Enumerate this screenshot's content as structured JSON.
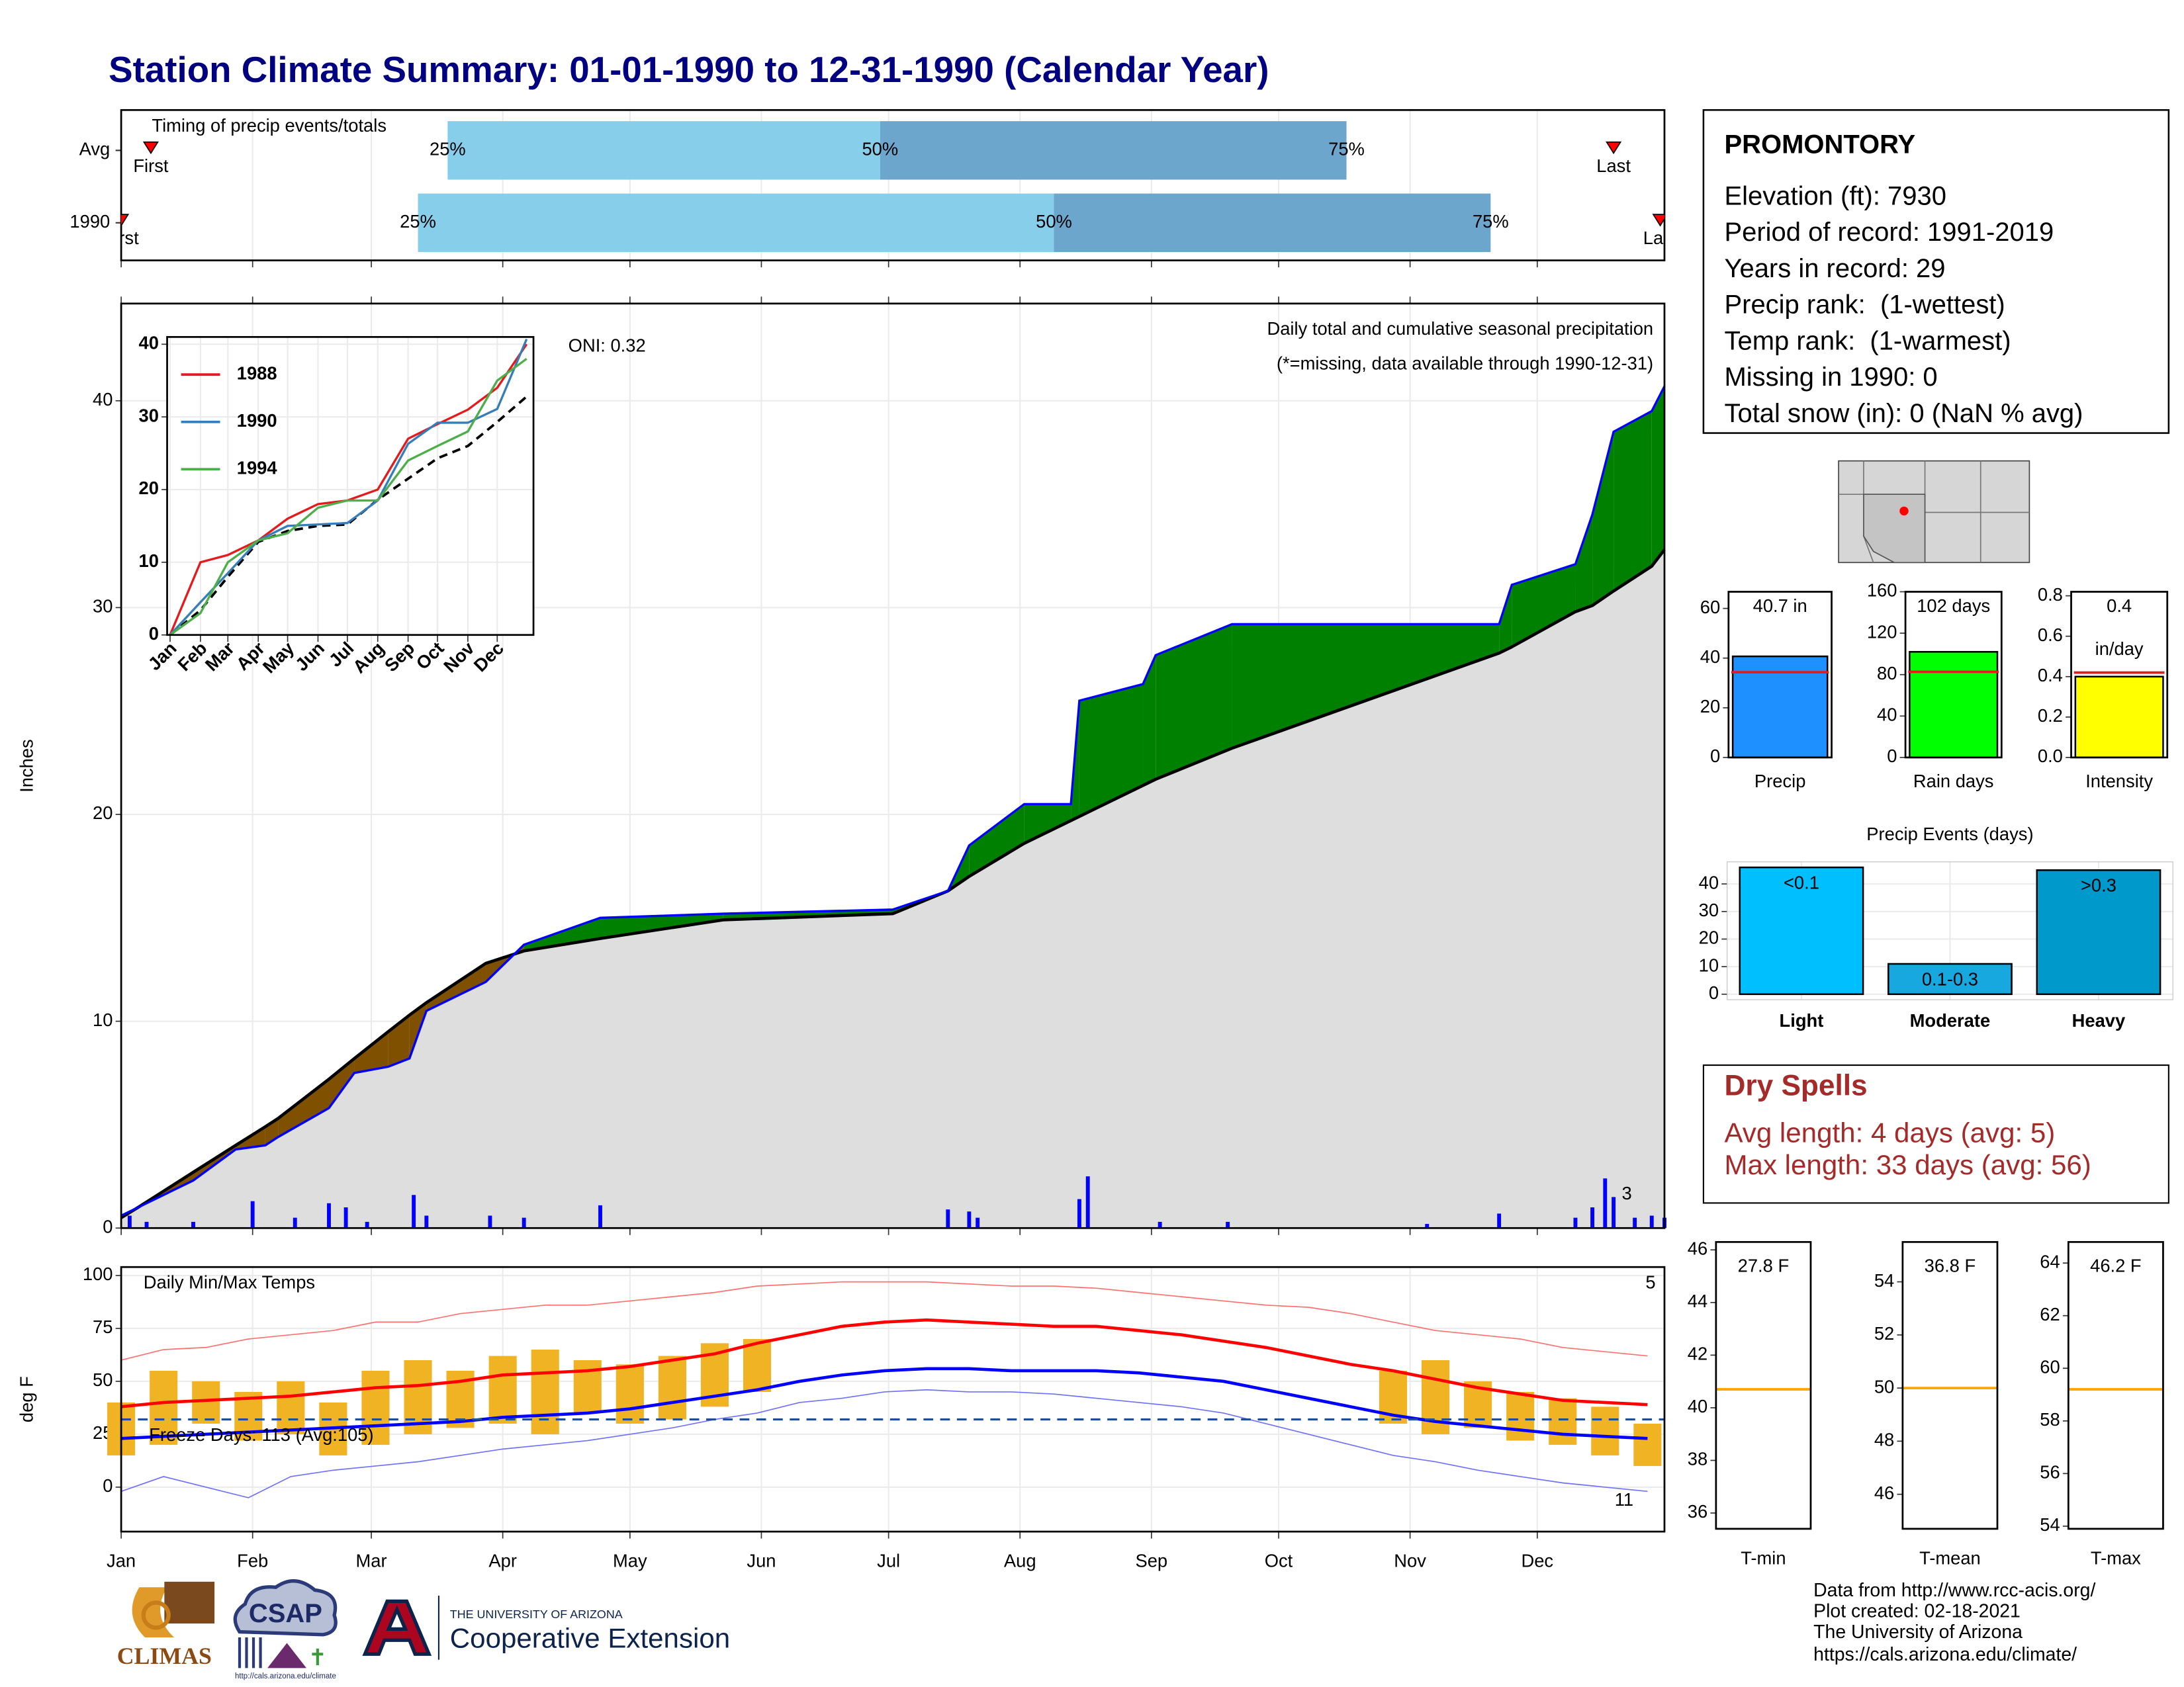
{
  "title": "Station Climate Summary: 01-01-1990 to 12-31-1990 (Calendar Year)",
  "station": {
    "name": "PROMONTORY",
    "lines": [
      "Elevation (ft): 7930",
      "Period of record: 1991-2019",
      "Years in record: 29",
      "Precip rank:  (1-wettest)",
      "Temp rank:  (1-warmest)",
      "Missing in 1990: 0",
      "Total snow (in): 0 (NaN % avg)"
    ]
  },
  "dry_spells": {
    "title": "Dry Spells",
    "lines": [
      "Avg length: 4 days (avg: 5)",
      "Max length: 33 days (avg: 56)"
    ]
  },
  "footer": {
    "lines": [
      "Data from http://www.rcc-acis.org/",
      "Plot created: 02-18-2021",
      "The University of Arizona",
      "https://cals.arizona.edu/climate/"
    ]
  },
  "logos": {
    "climas": "CLIMAS",
    "csap": "CSAP",
    "csap_url": "http://cals.arizona.edu/climate",
    "ua_small": "THE UNIVERSITY OF ARIZONA",
    "ua_ext": "Cooperative Extension"
  },
  "chart_data": [
    {
      "type": "timing",
      "title": "Timing of precip events/totals",
      "categories": [
        "Avg",
        "1990"
      ],
      "first": [
        8,
        1
      ],
      "q25": [
        78,
        71
      ],
      "q50": [
        180,
        221
      ],
      "q75": [
        290,
        324
      ],
      "last": [
        353,
        364
      ],
      "labels": {
        "first": "First",
        "last": "Last",
        "q25": "25%",
        "q50": "50%",
        "q75": "75%"
      },
      "colors": {
        "lower": "#87ceeb",
        "upper": "#6ca6cd",
        "marker": "#ff0000"
      },
      "xlim": [
        1,
        365
      ],
      "xticks": [
        1,
        32,
        60,
        91,
        121,
        152,
        182,
        213,
        244,
        274,
        305,
        335
      ]
    },
    {
      "type": "cumulative",
      "ylabel": "Inches",
      "oni": "ONI: 0.32",
      "subtitle": "Daily total and cumulative seasonal precipitation",
      "note": "(*=missing, data available through 1990-12-31)",
      "annotation": "3",
      "x": [
        1,
        5,
        18,
        28,
        35,
        38,
        50,
        56,
        64,
        69,
        73,
        87,
        96,
        114,
        143,
        183,
        196,
        201,
        214,
        225,
        227,
        242,
        245,
        263,
        326,
        329,
        344,
        348,
        353,
        362,
        365
      ],
      "values": [
        0.6,
        1.0,
        2.3,
        3.8,
        4.0,
        4.4,
        5.8,
        7.5,
        7.8,
        8.2,
        10.5,
        11.9,
        13.7,
        15.0,
        15.2,
        15.4,
        16.3,
        18.5,
        20.5,
        20.5,
        25.5,
        26.3,
        27.7,
        29.2,
        29.2,
        31.1,
        32.1,
        34.5,
        38.5,
        39.5,
        40.7
      ],
      "avg_values": [
        0.5,
        1.0,
        2.7,
        4.0,
        4.9,
        5.3,
        7.2,
        8.2,
        9.5,
        10.3,
        10.9,
        12.8,
        13.4,
        14.0,
        14.9,
        15.2,
        16.3,
        17.0,
        18.6,
        19.7,
        19.9,
        21.4,
        21.7,
        23.2,
        27.8,
        28.1,
        29.8,
        30.1,
        30.8,
        32.0,
        32.8
      ],
      "daily_x": [
        3,
        7,
        18,
        32,
        42,
        50,
        54,
        59,
        70,
        73,
        88,
        96,
        114,
        196,
        201,
        203,
        227,
        229,
        246,
        262,
        309,
        326,
        344,
        348,
        351,
        353,
        358,
        362,
        365
      ],
      "daily_values": [
        0.6,
        0.3,
        0.3,
        1.3,
        0.5,
        1.2,
        1.0,
        0.3,
        1.6,
        0.6,
        0.6,
        0.5,
        1.1,
        0.9,
        0.8,
        0.5,
        1.4,
        2.5,
        0.3,
        0.3,
        0.2,
        0.7,
        0.5,
        1.0,
        2.4,
        1.5,
        0.5,
        0.6,
        0.5
      ],
      "colors": {
        "line": "#0000ff",
        "avg_line": "#000000",
        "above": "#008000",
        "below": "#7f5000",
        "base": "#dedede",
        "daily": "#0000ff",
        "annotation": "#ffa500",
        "note": "#ff0000"
      },
      "xlim": [
        1,
        365
      ],
      "ylim": [
        0,
        44.7
      ],
      "xticks": [
        1,
        32,
        60,
        91,
        121,
        152,
        182,
        213,
        244,
        274,
        305,
        335
      ],
      "yticks": [
        0,
        10,
        20,
        30,
        40
      ]
    },
    {
      "type": "line",
      "x": [
        1,
        32,
        60,
        91,
        121,
        152,
        182,
        213,
        244,
        274,
        305,
        335,
        365
      ],
      "series": [
        {
          "name": "1988",
          "color": "#e41a1c",
          "values": [
            0,
            10,
            11,
            13,
            16,
            18,
            18.5,
            20,
            27,
            29,
            31,
            34,
            40
          ]
        },
        {
          "name": "1990",
          "color": "#377eb8",
          "values": [
            0,
            4.5,
            8.5,
            13,
            15,
            15.2,
            15.4,
            18.5,
            26.3,
            29.2,
            29.2,
            31.1,
            40.7
          ]
        },
        {
          "name": "1994",
          "color": "#4daf4a",
          "values": [
            0,
            3,
            10,
            13,
            14,
            17.5,
            18.5,
            18.5,
            24,
            26,
            28,
            35,
            38
          ]
        }
      ],
      "avg_values": [
        0,
        3.4,
        8.0,
        12.8,
        14.3,
        15.0,
        15.2,
        18.6,
        21.5,
        24.3,
        26.0,
        29.3,
        32.8
      ],
      "xlim": [
        -2,
        372
      ],
      "ylim": [
        0,
        41
      ],
      "xticks": [
        {
          "value": 1,
          "label": "Jan"
        },
        {
          "value": 32,
          "label": "Feb"
        },
        {
          "value": 60,
          "label": "Mar"
        },
        {
          "value": 91,
          "label": "Apr"
        },
        {
          "value": 121,
          "label": "May"
        },
        {
          "value": 152,
          "label": "Jun"
        },
        {
          "value": 182,
          "label": "Jul"
        },
        {
          "value": 213,
          "label": "Aug"
        },
        {
          "value": 244,
          "label": "Sep"
        },
        {
          "value": 274,
          "label": "Oct"
        },
        {
          "value": 305,
          "label": "Nov"
        },
        {
          "value": 335,
          "label": "Dec"
        }
      ],
      "yticks": [
        0,
        10,
        20,
        30,
        40
      ]
    },
    {
      "type": "bar",
      "categories": [
        "Precip"
      ],
      "values": [
        40.7
      ],
      "value_labels": [
        "40.7 in"
      ],
      "avg_line": 34.3,
      "color": "#1e90ff",
      "ylim": [
        0,
        66.7
      ],
      "yticks": [
        0,
        20,
        40,
        60
      ]
    },
    {
      "type": "bar",
      "categories": [
        "Rain days"
      ],
      "values": [
        102
      ],
      "value_labels": [
        "102 days"
      ],
      "avg_line": 82.7,
      "color": "#00ff00",
      "ylim": [
        0,
        160
      ],
      "yticks": [
        0,
        40,
        80,
        120,
        160
      ]
    },
    {
      "type": "bar",
      "categories": [
        "Intensity"
      ],
      "values": [
        0.4
      ],
      "value_labels": [
        "0.4"
      ],
      "unit_label": "in/day",
      "avg_line": 0.42,
      "color": "#ffff00",
      "ylim": [
        0,
        0.82
      ],
      "yticks": [
        {
          "value": 0,
          "label": "0.0"
        },
        0.2,
        0.4,
        0.6,
        0.8
      ]
    },
    {
      "type": "bar",
      "title": "Precip Events (days)",
      "categories": [
        "Light",
        "Moderate",
        "Heavy"
      ],
      "values": [
        46,
        11,
        45
      ],
      "bar_labels": [
        "<0.1",
        "0.1-0.3",
        ">0.3"
      ],
      "colors": [
        "#00bfff",
        "#18a8e0",
        "#0099cc"
      ],
      "ylim": [
        -2,
        48
      ],
      "yticks": [
        0,
        10,
        20,
        30,
        40
      ]
    },
    {
      "type": "temperature",
      "title": "Daily Min/Max Temps",
      "ylabel": "deg F",
      "freeze_label": "Freeze Days: 113 (Avg:105)",
      "freeze_line": 32,
      "annotations": [
        "5",
        "11"
      ],
      "x": [
        1,
        11,
        21,
        31,
        41,
        51,
        61,
        71,
        81,
        91,
        101,
        111,
        121,
        131,
        141,
        151,
        161,
        171,
        181,
        191,
        201,
        211,
        221,
        231,
        241,
        251,
        261,
        271,
        281,
        291,
        301,
        311,
        321,
        331,
        341,
        351,
        361
      ],
      "avg_max": [
        38,
        40,
        41,
        42,
        43,
        45,
        47,
        48,
        50,
        53,
        54,
        55,
        57,
        60,
        63,
        68,
        72,
        76,
        78,
        79,
        78,
        77,
        76,
        76,
        74,
        72,
        69,
        66,
        62,
        58,
        55,
        51,
        47,
        44,
        41,
        40,
        39
      ],
      "avg_min": [
        23,
        24,
        25,
        26,
        27,
        28,
        29,
        30,
        31,
        33,
        34,
        35,
        37,
        40,
        43,
        46,
        50,
        53,
        55,
        56,
        56,
        55,
        55,
        55,
        54,
        52,
        50,
        46,
        42,
        38,
        34,
        31,
        29,
        27,
        25,
        24,
        23
      ],
      "record_max": [
        60,
        65,
        66,
        70,
        72,
        74,
        78,
        78,
        82,
        84,
        86,
        86,
        88,
        90,
        92,
        95,
        96,
        97,
        97,
        97,
        96,
        95,
        95,
        94,
        92,
        90,
        88,
        86,
        85,
        82,
        78,
        74,
        72,
        70,
        66,
        64,
        62
      ],
      "record_min": [
        -2,
        5,
        0,
        -5,
        5,
        8,
        10,
        12,
        15,
        18,
        20,
        22,
        25,
        28,
        32,
        35,
        40,
        42,
        45,
        46,
        45,
        45,
        44,
        42,
        40,
        38,
        35,
        30,
        25,
        20,
        15,
        12,
        8,
        5,
        2,
        0,
        -2
      ],
      "daily_min": [
        15,
        20,
        30,
        22,
        25,
        15,
        20,
        25,
        28,
        30,
        25,
        35,
        30,
        32,
        38,
        45,
        null,
        null,
        null,
        null,
        null,
        null,
        null,
        null,
        null,
        null,
        null,
        null,
        null,
        null,
        30,
        25,
        28,
        22,
        20,
        15,
        10
      ],
      "daily_max": [
        40,
        55,
        50,
        45,
        50,
        40,
        55,
        60,
        55,
        62,
        65,
        60,
        58,
        62,
        68,
        70,
        null,
        null,
        null,
        null,
        null,
        null,
        null,
        null,
        null,
        null,
        null,
        null,
        null,
        null,
        55,
        60,
        50,
        45,
        42,
        38,
        30
      ],
      "colors": {
        "avg_max": "#ff0000",
        "avg_min": "#0000ff",
        "record_max": "#ff7070",
        "record_min": "#7070ff",
        "daily": "#f0b323",
        "freeze": "#1f4e99"
      },
      "xlim": [
        1,
        365
      ],
      "ylim": [
        -21,
        104
      ],
      "xticks": [
        {
          "value": 1,
          "label": "Jan"
        },
        {
          "value": 32,
          "label": "Feb"
        },
        {
          "value": 60,
          "label": "Mar"
        },
        {
          "value": 91,
          "label": "Apr"
        },
        {
          "value": 121,
          "label": "May"
        },
        {
          "value": 152,
          "label": "Jun"
        },
        {
          "value": 182,
          "label": "Jul"
        },
        {
          "value": 213,
          "label": "Aug"
        },
        {
          "value": 244,
          "label": "Sep"
        },
        {
          "value": 274,
          "label": "Oct"
        },
        {
          "value": 305,
          "label": "Nov"
        },
        {
          "value": 335,
          "label": "Dec"
        }
      ],
      "yticks": [
        0,
        25,
        50,
        75,
        100
      ]
    },
    {
      "type": "stat",
      "xlabel": "T-min",
      "value_label": "27.8 F",
      "avg_line": 40.7,
      "color": "#ffa500",
      "ylim": [
        35.4,
        46.3
      ],
      "yticks": [
        36,
        38,
        40,
        42,
        44,
        46
      ]
    },
    {
      "type": "stat",
      "xlabel": "T-mean",
      "value_label": "36.8 F",
      "avg_line": 50,
      "color": "#ffa500",
      "ylim": [
        44.7,
        55.5
      ],
      "yticks": [
        46,
        48,
        50,
        52,
        54
      ]
    },
    {
      "type": "stat",
      "xlabel": "T-max",
      "value_label": "46.2 F",
      "avg_line": 59.2,
      "color": "#ffa500",
      "ylim": [
        53.9,
        64.8
      ],
      "yticks": [
        54,
        56,
        58,
        60,
        62,
        64
      ]
    }
  ]
}
